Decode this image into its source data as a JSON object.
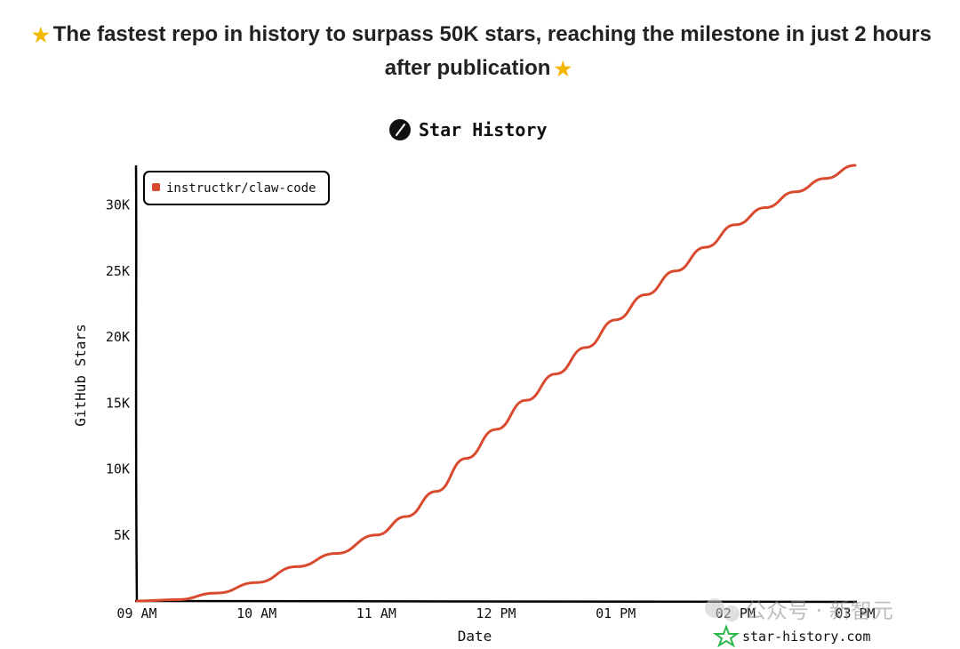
{
  "headline": {
    "prefix_icon": "star-emoji",
    "text_line1": "The fastest repo in history to surpass 50K stars, reaching the milestone in just 2 hours",
    "text_line2": "after publication",
    "suffix_icon": "star-emoji"
  },
  "watermark": {
    "text": "公众号 · 新智元",
    "icon": "wechat-icon"
  },
  "branding": {
    "site": "star-history.com",
    "icon": "star-history-logo-icon"
  },
  "chart_data": {
    "type": "line",
    "title": "Star History",
    "title_icon": "star-history-logo-icon",
    "xlabel": "Date",
    "ylabel": "GitHub Stars",
    "x_ticks": [
      "09 AM",
      "10 AM",
      "11 AM",
      "12 PM",
      "01 PM",
      "02 PM",
      "03 PM"
    ],
    "y_ticks": [
      "5K",
      "10K",
      "15K",
      "20K",
      "25K",
      "30K"
    ],
    "y_tick_values": [
      5000,
      10000,
      15000,
      20000,
      25000,
      30000
    ],
    "xlim": [
      "09:00",
      "15:00"
    ],
    "ylim": [
      0,
      33000
    ],
    "legend_position": "top-left",
    "grid": false,
    "series": [
      {
        "name": "instructkr/claw-code",
        "color": "#d94a2f",
        "x": [
          "09:00",
          "09:20",
          "09:40",
          "10:00",
          "10:20",
          "10:40",
          "11:00",
          "11:15",
          "11:30",
          "11:45",
          "12:00",
          "12:15",
          "12:30",
          "12:45",
          "13:00",
          "13:15",
          "13:30",
          "13:45",
          "14:00",
          "14:15",
          "14:30",
          "14:45",
          "15:00"
        ],
        "y": [
          0,
          100,
          600,
          1400,
          2600,
          3600,
          5000,
          6400,
          8300,
          10800,
          13000,
          15200,
          17200,
          19200,
          21300,
          23200,
          25000,
          26800,
          28500,
          29800,
          31000,
          32000,
          33000
        ]
      }
    ]
  }
}
